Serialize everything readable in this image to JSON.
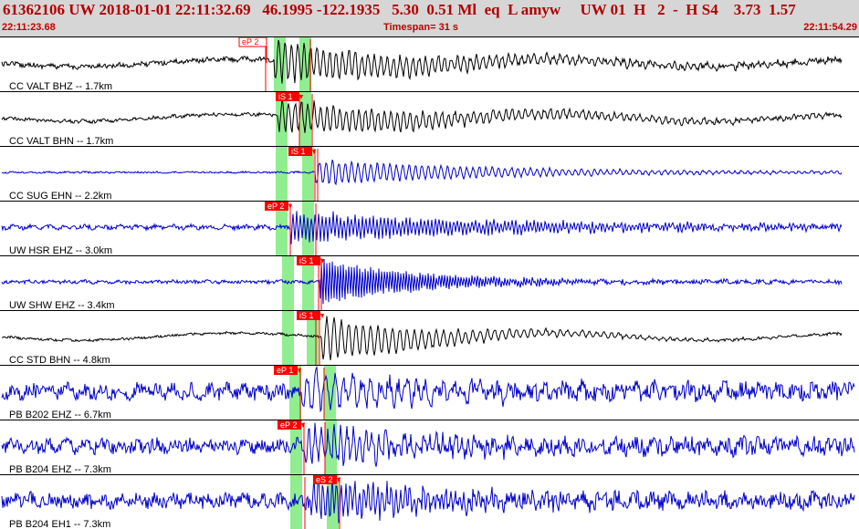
{
  "header": {
    "title": "61362106 UW 2018-01-01 22:11:32.69   46.1995 -122.1935   5.30  0.51 Ml  eq  L amyw     UW 01  H   2  -  H S4    3.73  1.57",
    "start_time": "22:11:23.68",
    "timespan": "Timespan=  31 s",
    "end_time": "22:11:54.29"
  },
  "colors": {
    "trace_black": "#000000",
    "trace_blue": "#0000cc",
    "pick": "#ff0000",
    "window": "#90ee90",
    "header_bg": "#d6d6d6"
  },
  "traces": [
    {
      "label": "CC VALT BHZ -- 1.7km",
      "color": "black",
      "p_pick": "eP 2",
      "s_pick": ""
    },
    {
      "label": "CC VALT BHN -- 1.7km",
      "color": "black",
      "p_pick": "",
      "s_pick": "iS 1"
    },
    {
      "label": "CC SUG EHN -- 2.2km",
      "color": "blue",
      "p_pick": "",
      "s_pick": "iS 1"
    },
    {
      "label": "UW HSR EHZ -- 3.0km",
      "color": "blue",
      "p_pick": "eP 2",
      "s_pick": ""
    },
    {
      "label": "UW SHW EHZ -- 3.4km",
      "color": "blue",
      "p_pick": "",
      "s_pick": "iS 1"
    },
    {
      "label": "CC STD BHN -- 4.8km",
      "color": "black",
      "p_pick": "",
      "s_pick": "iS 1"
    },
    {
      "label": "PB B202 EHZ -- 6.7km",
      "color": "blue",
      "p_pick": "eP 1",
      "s_pick": ""
    },
    {
      "label": "PB B204 EHZ -- 7.3km",
      "color": "blue",
      "p_pick": "eP 2",
      "s_pick": ""
    },
    {
      "label": "PB B204 EH1 -- 7.3km",
      "color": "blue",
      "p_pick": "",
      "s_pick": "eS 2"
    }
  ]
}
